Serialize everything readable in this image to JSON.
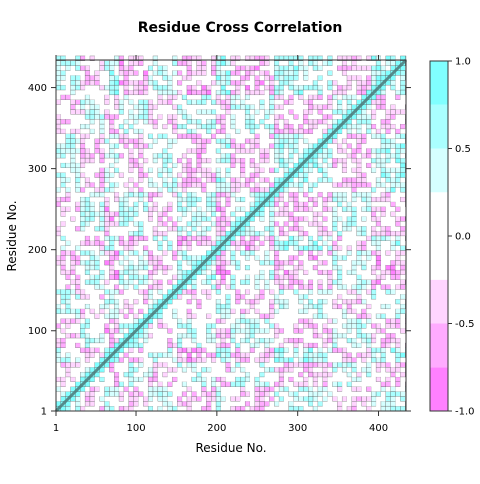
{
  "chart_data": {
    "type": "heatmap",
    "title": "Residue Cross Correlation",
    "xlabel": "Residue No.",
    "ylabel": "Residue No.",
    "n_residues": 434,
    "xlim": [
      1,
      434
    ],
    "ylim": [
      1,
      434
    ],
    "x_ticks": [
      1,
      100,
      200,
      300,
      400
    ],
    "y_ticks": [
      1,
      100,
      200,
      300,
      400
    ],
    "x_tick_labels": [
      "1",
      "100",
      "200",
      "300",
      "400"
    ],
    "y_tick_labels": [
      "1",
      "100",
      "200",
      "300",
      "400"
    ],
    "colorbar": {
      "range": [
        -1.0,
        1.0
      ],
      "tick_labels": [
        "1.0",
        "0.5",
        "0.0",
        "-0.5",
        "-1.0"
      ],
      "tick_values": [
        1.0,
        0.5,
        0.0,
        -0.5,
        -1.0
      ],
      "breaks": [
        -1.0,
        -0.75,
        -0.5,
        -0.25,
        0.25,
        0.5,
        0.75,
        1.0
      ],
      "colors": [
        "#ff80ff",
        "#ffabff",
        "#ffd5ff",
        "#ffffff",
        "#d5ffff",
        "#aaffff",
        "#80ffff"
      ]
    },
    "contour_color": "#555555",
    "diagonal_value": 1.0,
    "correlation_blocks": [
      {
        "range": [
          1,
          30
        ],
        "mean": 0.35
      },
      {
        "range": [
          30,
          60
        ],
        "mean": -0.35
      },
      {
        "range": [
          60,
          75
        ],
        "mean": 0.5
      },
      {
        "range": [
          75,
          110
        ],
        "mean": -0.4
      },
      {
        "range": [
          110,
          150
        ],
        "mean": 0.3
      },
      {
        "range": [
          150,
          195
        ],
        "mean": -0.45
      },
      {
        "range": [
          195,
          215
        ],
        "mean": 0.55
      },
      {
        "range": [
          215,
          270
        ],
        "mean": -0.4
      },
      {
        "range": [
          270,
          340
        ],
        "mean": 0.45
      },
      {
        "range": [
          340,
          385
        ],
        "mean": -0.35
      },
      {
        "range": [
          385,
          434
        ],
        "mean": 0.5
      }
    ]
  }
}
